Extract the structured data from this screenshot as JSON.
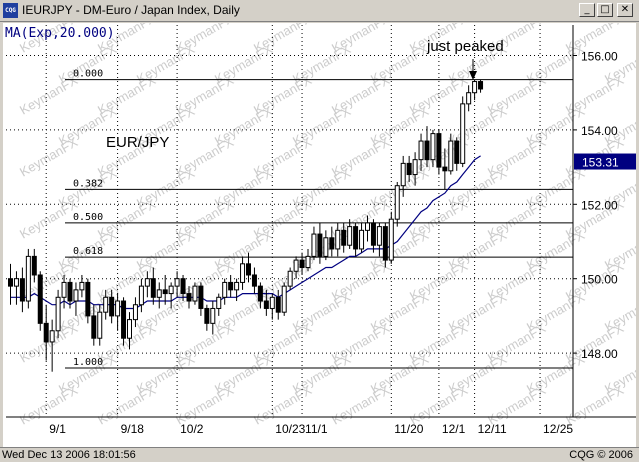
{
  "window": {
    "title": "IEURJPY - DM-Euro / Japan Index, Daily",
    "app_icon": "cqg-icon",
    "min_glyph": "_",
    "max_glyph": "□",
    "close_glyph": "✕"
  },
  "status_bar": {
    "left": "Wed Dec 13 2006 18:01:56",
    "right": "CQG © 2006"
  },
  "colors": {
    "candle": "#000000",
    "ma_line": "#000080",
    "fib_line": "#000000",
    "price_badge_bg": "#000080",
    "price_badge_text": "#ffffff",
    "watermark": "#cccccc"
  },
  "chart_data": {
    "type": "candlestick",
    "instrument_label": "EUR/JPY",
    "indicator_label": "MA(Exp,20.000)",
    "annotation": "just peaked",
    "watermark": "KeymanFX",
    "last_price": "153.31",
    "ylim": [
      147.0,
      157.0
    ],
    "y_ticks": [
      {
        "v": 148,
        "label": "148.00"
      },
      {
        "v": 150,
        "label": "150.00"
      },
      {
        "v": 152,
        "label": "152.00"
      },
      {
        "v": 154,
        "label": "154.00"
      },
      {
        "v": 156,
        "label": "156.00"
      }
    ],
    "x_ticks": [
      {
        "i": 6,
        "label": "9/1"
      },
      {
        "i": 18,
        "label": "9/18"
      },
      {
        "i": 28,
        "label": "10/2"
      },
      {
        "i": 44,
        "label": "10/23"
      },
      {
        "i": 49,
        "label": "11/1"
      },
      {
        "i": 64,
        "label": "11/20"
      },
      {
        "i": 72,
        "label": "12/1"
      },
      {
        "i": 78,
        "label": "12/11"
      },
      {
        "i": 89,
        "label": "12/25"
      }
    ],
    "fib_levels": [
      {
        "label": "0.000",
        "v": 155.35
      },
      {
        "label": "0.382",
        "v": 152.4
      },
      {
        "label": "0.500",
        "v": 151.5
      },
      {
        "label": "0.618",
        "v": 150.58
      },
      {
        "label": "1.000",
        "v": 147.6
      }
    ],
    "candles": [
      {
        "o": 150.0,
        "h": 150.4,
        "l": 149.3,
        "c": 149.8
      },
      {
        "o": 149.8,
        "h": 150.2,
        "l": 149.3,
        "c": 150.0
      },
      {
        "o": 150.0,
        "h": 150.3,
        "l": 149.1,
        "c": 149.4
      },
      {
        "o": 149.4,
        "h": 150.8,
        "l": 149.2,
        "c": 150.6
      },
      {
        "o": 150.6,
        "h": 150.8,
        "l": 149.9,
        "c": 150.1
      },
      {
        "o": 150.1,
        "h": 150.2,
        "l": 148.6,
        "c": 148.8
      },
      {
        "o": 148.8,
        "h": 149.3,
        "l": 147.8,
        "c": 148.3
      },
      {
        "o": 148.3,
        "h": 148.9,
        "l": 147.5,
        "c": 148.6
      },
      {
        "o": 148.6,
        "h": 149.7,
        "l": 148.4,
        "c": 149.5
      },
      {
        "o": 149.5,
        "h": 150.1,
        "l": 149.2,
        "c": 149.9
      },
      {
        "o": 149.9,
        "h": 150.0,
        "l": 149.2,
        "c": 149.4
      },
      {
        "o": 149.4,
        "h": 149.9,
        "l": 149.0,
        "c": 149.7
      },
      {
        "o": 149.7,
        "h": 150.1,
        "l": 149.5,
        "c": 149.9
      },
      {
        "o": 149.9,
        "h": 150.0,
        "l": 148.8,
        "c": 149.0
      },
      {
        "o": 149.0,
        "h": 149.3,
        "l": 148.2,
        "c": 148.4
      },
      {
        "o": 148.4,
        "h": 149.3,
        "l": 148.2,
        "c": 149.1
      },
      {
        "o": 149.1,
        "h": 149.7,
        "l": 148.9,
        "c": 149.5
      },
      {
        "o": 149.5,
        "h": 149.7,
        "l": 148.8,
        "c": 149.0
      },
      {
        "o": 149.0,
        "h": 149.6,
        "l": 148.6,
        "c": 149.4
      },
      {
        "o": 149.4,
        "h": 149.5,
        "l": 148.2,
        "c": 148.4
      },
      {
        "o": 148.4,
        "h": 149.1,
        "l": 148.1,
        "c": 148.9
      },
      {
        "o": 148.9,
        "h": 149.5,
        "l": 148.7,
        "c": 149.3
      },
      {
        "o": 149.3,
        "h": 150.0,
        "l": 149.1,
        "c": 149.8
      },
      {
        "o": 149.8,
        "h": 150.2,
        "l": 149.5,
        "c": 150.0
      },
      {
        "o": 150.0,
        "h": 150.3,
        "l": 149.3,
        "c": 149.5
      },
      {
        "o": 149.5,
        "h": 149.9,
        "l": 149.2,
        "c": 149.7
      },
      {
        "o": 149.7,
        "h": 150.1,
        "l": 149.3,
        "c": 149.6
      },
      {
        "o": 149.6,
        "h": 149.9,
        "l": 149.2,
        "c": 149.8
      },
      {
        "o": 149.8,
        "h": 150.2,
        "l": 149.5,
        "c": 150.0
      },
      {
        "o": 150.0,
        "h": 150.1,
        "l": 149.4,
        "c": 149.6
      },
      {
        "o": 149.6,
        "h": 149.8,
        "l": 149.2,
        "c": 149.4
      },
      {
        "o": 149.4,
        "h": 149.9,
        "l": 149.3,
        "c": 149.8
      },
      {
        "o": 149.8,
        "h": 149.9,
        "l": 149.0,
        "c": 149.2
      },
      {
        "o": 149.2,
        "h": 149.3,
        "l": 148.6,
        "c": 148.8
      },
      {
        "o": 148.8,
        "h": 149.4,
        "l": 148.5,
        "c": 149.2
      },
      {
        "o": 149.2,
        "h": 149.6,
        "l": 149.0,
        "c": 149.5
      },
      {
        "o": 149.5,
        "h": 150.0,
        "l": 149.3,
        "c": 149.9
      },
      {
        "o": 149.9,
        "h": 150.1,
        "l": 149.5,
        "c": 149.7
      },
      {
        "o": 149.7,
        "h": 150.0,
        "l": 149.4,
        "c": 149.9
      },
      {
        "o": 149.9,
        "h": 150.6,
        "l": 149.7,
        "c": 150.4
      },
      {
        "o": 150.4,
        "h": 150.7,
        "l": 149.9,
        "c": 150.1
      },
      {
        "o": 150.1,
        "h": 150.3,
        "l": 149.6,
        "c": 149.8
      },
      {
        "o": 149.8,
        "h": 149.9,
        "l": 149.2,
        "c": 149.4
      },
      {
        "o": 149.4,
        "h": 149.7,
        "l": 149.0,
        "c": 149.2
      },
      {
        "o": 149.2,
        "h": 149.6,
        "l": 148.9,
        "c": 149.5
      },
      {
        "o": 149.5,
        "h": 149.7,
        "l": 148.9,
        "c": 149.1
      },
      {
        "o": 149.1,
        "h": 149.9,
        "l": 149.0,
        "c": 149.8
      },
      {
        "o": 149.8,
        "h": 150.3,
        "l": 149.7,
        "c": 150.2
      },
      {
        "o": 150.2,
        "h": 150.6,
        "l": 150.0,
        "c": 150.5
      },
      {
        "o": 150.5,
        "h": 150.7,
        "l": 150.1,
        "c": 150.3
      },
      {
        "o": 150.3,
        "h": 150.8,
        "l": 150.2,
        "c": 150.6
      },
      {
        "o": 150.6,
        "h": 151.4,
        "l": 150.5,
        "c": 151.2
      },
      {
        "o": 151.2,
        "h": 151.5,
        "l": 150.4,
        "c": 150.6
      },
      {
        "o": 150.6,
        "h": 151.3,
        "l": 150.5,
        "c": 151.1
      },
      {
        "o": 151.1,
        "h": 151.4,
        "l": 150.6,
        "c": 150.8
      },
      {
        "o": 150.8,
        "h": 151.5,
        "l": 150.6,
        "c": 151.3
      },
      {
        "o": 151.3,
        "h": 151.5,
        "l": 150.7,
        "c": 150.9
      },
      {
        "o": 150.9,
        "h": 151.6,
        "l": 150.8,
        "c": 151.4
      },
      {
        "o": 151.4,
        "h": 151.5,
        "l": 150.6,
        "c": 150.8
      },
      {
        "o": 150.8,
        "h": 151.5,
        "l": 150.7,
        "c": 151.3
      },
      {
        "o": 151.3,
        "h": 151.7,
        "l": 151.0,
        "c": 151.5
      },
      {
        "o": 151.5,
        "h": 151.6,
        "l": 150.7,
        "c": 150.9
      },
      {
        "o": 150.9,
        "h": 151.5,
        "l": 150.6,
        "c": 151.4
      },
      {
        "o": 151.4,
        "h": 151.5,
        "l": 150.3,
        "c": 150.5
      },
      {
        "o": 150.5,
        "h": 151.8,
        "l": 150.4,
        "c": 151.6
      },
      {
        "o": 151.6,
        "h": 152.6,
        "l": 151.4,
        "c": 152.5
      },
      {
        "o": 152.5,
        "h": 153.3,
        "l": 152.2,
        "c": 153.1
      },
      {
        "o": 153.1,
        "h": 153.3,
        "l": 152.6,
        "c": 152.8
      },
      {
        "o": 152.8,
        "h": 153.4,
        "l": 152.5,
        "c": 153.2
      },
      {
        "o": 153.2,
        "h": 153.9,
        "l": 152.9,
        "c": 153.7
      },
      {
        "o": 153.7,
        "h": 154.1,
        "l": 153.0,
        "c": 153.2
      },
      {
        "o": 153.2,
        "h": 154.0,
        "l": 153.0,
        "c": 153.9
      },
      {
        "o": 153.9,
        "h": 154.0,
        "l": 152.8,
        "c": 153.0
      },
      {
        "o": 153.0,
        "h": 153.5,
        "l": 152.4,
        "c": 152.9
      },
      {
        "o": 152.9,
        "h": 153.9,
        "l": 152.8,
        "c": 153.7
      },
      {
        "o": 153.7,
        "h": 153.8,
        "l": 152.9,
        "c": 153.1
      },
      {
        "o": 153.1,
        "h": 154.9,
        "l": 153.0,
        "c": 154.7
      },
      {
        "o": 154.7,
        "h": 155.2,
        "l": 154.5,
        "c": 155.0
      },
      {
        "o": 155.0,
        "h": 155.35,
        "l": 154.8,
        "c": 155.3
      },
      {
        "o": 155.3,
        "h": 155.35,
        "l": 155.0,
        "c": 155.1
      }
    ],
    "ma": [
      149.5,
      149.5,
      149.5,
      149.5,
      149.6,
      149.5,
      149.4,
      149.3,
      149.3,
      149.4,
      149.3,
      149.4,
      149.4,
      149.4,
      149.3,
      149.3,
      149.3,
      149.3,
      149.3,
      149.2,
      149.2,
      149.2,
      149.3,
      149.4,
      149.4,
      149.4,
      149.4,
      149.4,
      149.5,
      149.5,
      149.5,
      149.5,
      149.5,
      149.4,
      149.4,
      149.4,
      149.5,
      149.5,
      149.5,
      149.6,
      149.6,
      149.6,
      149.6,
      149.6,
      149.6,
      149.5,
      149.6,
      149.7,
      149.8,
      149.9,
      150.0,
      150.1,
      150.2,
      150.3,
      150.3,
      150.4,
      150.5,
      150.6,
      150.6,
      150.7,
      150.8,
      150.8,
      150.8,
      150.8,
      150.9,
      151.0,
      151.2,
      151.4,
      151.6,
      151.8,
      151.9,
      152.1,
      152.2,
      152.3,
      152.5,
      152.6,
      152.8,
      153.0,
      153.2,
      153.3
    ]
  }
}
